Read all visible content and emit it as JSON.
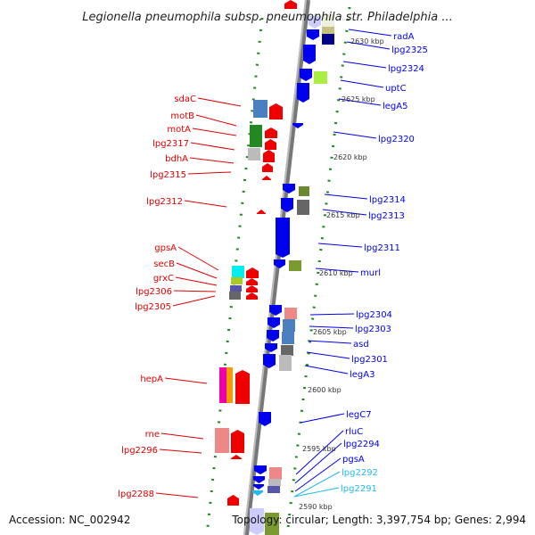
{
  "title": "Legionella pneumophila subsp. pneumophila str. Philadelphia ...",
  "footer": {
    "accession": "Accession: NC_002942",
    "summary": "Topology: circular; Length: 3,397,754 bp; Genes: 2,994"
  },
  "ticks": [
    "2630 kbp",
    "2625 kbp",
    "2620 kbp",
    "2615 kbp",
    "2610 kbp",
    "2605 kbp",
    "2600 kbp",
    "2595 kbp",
    "2590 kbp"
  ],
  "right_labels": [
    "radA",
    "lpg2325",
    "lpg2324",
    "uptC",
    "legA5",
    "lpg2320",
    "lpg2314",
    "lpg2313",
    "lpg2311",
    "murl",
    "lpg2304",
    "lpg2303",
    "asd",
    "lpg2301",
    "legA3",
    "legC7",
    "rluC",
    "lpg2294",
    "pgsA",
    "lpg2292",
    "lpg2291"
  ],
  "left_labels": [
    "sdaC",
    "motB",
    "motA",
    "lpg2317",
    "bdhA",
    "lpg2315",
    "lpg2312",
    "gpsA",
    "secB",
    "grxC",
    "lpg2306",
    "lpg2305",
    "hepA",
    "rne",
    "lpg2296",
    "lpg2288"
  ],
  "colors": {
    "forward": "#0000ee",
    "reverse": "#ee0000",
    "tick": "#1a8a1a",
    "rna": "#22bbee",
    "backbone": "#888888"
  }
}
